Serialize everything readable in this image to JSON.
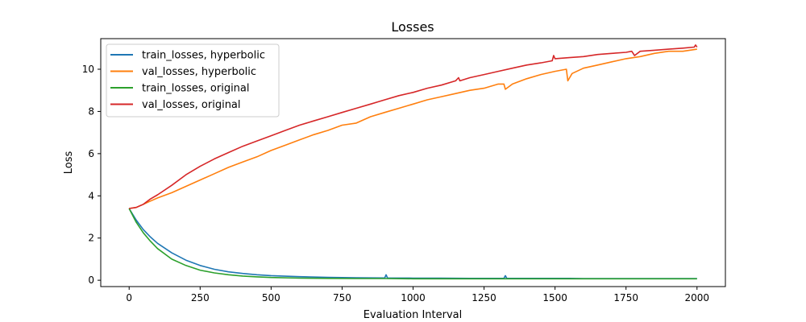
{
  "chart_data": {
    "type": "line",
    "title": "Losses",
    "xlabel": "Evaluation Interval",
    "ylabel": "Loss",
    "xlim": [
      -100,
      2100
    ],
    "ylim": [
      -0.3,
      11.45
    ],
    "xticks": [
      0,
      250,
      500,
      750,
      1000,
      1250,
      1500,
      1750,
      2000
    ],
    "yticks": [
      0,
      2,
      4,
      6,
      8,
      10
    ],
    "xtick_labels": [
      "0",
      "250",
      "500",
      "750",
      "1000",
      "1250",
      "1500",
      "1750",
      "2000"
    ],
    "ytick_labels": [
      "0",
      "2",
      "4",
      "6",
      "8",
      "10"
    ],
    "grid": false,
    "legend_position": "top-left",
    "series": [
      {
        "name": "train_losses, hyperbolic",
        "color": "#1f77b4",
        "x": [
          0,
          25,
          50,
          75,
          100,
          150,
          200,
          250,
          300,
          350,
          400,
          450,
          500,
          600,
          700,
          800,
          900,
          905,
          910,
          1000,
          1100,
          1200,
          1320,
          1325,
          1330,
          1400,
          1500,
          1550,
          1600,
          1700,
          1800,
          1900,
          1950,
          2000
        ],
        "y": [
          3.4,
          2.85,
          2.4,
          2.05,
          1.75,
          1.3,
          0.95,
          0.7,
          0.52,
          0.4,
          0.32,
          0.26,
          0.22,
          0.17,
          0.14,
          0.12,
          0.11,
          0.26,
          0.11,
          0.1,
          0.1,
          0.09,
          0.09,
          0.22,
          0.09,
          0.09,
          0.09,
          0.09,
          0.08,
          0.08,
          0.08,
          0.08,
          0.08,
          0.08
        ]
      },
      {
        "name": "val_losses, hyperbolic",
        "color": "#ff7f0e",
        "x": [
          0,
          25,
          50,
          75,
          100,
          150,
          200,
          250,
          300,
          350,
          400,
          450,
          500,
          550,
          600,
          650,
          700,
          750,
          800,
          850,
          900,
          950,
          1000,
          1050,
          1100,
          1150,
          1200,
          1250,
          1300,
          1320,
          1325,
          1350,
          1400,
          1450,
          1500,
          1540,
          1545,
          1560,
          1600,
          1650,
          1700,
          1750,
          1800,
          1850,
          1900,
          1950,
          2000
        ],
        "y": [
          3.4,
          3.45,
          3.6,
          3.75,
          3.9,
          4.15,
          4.45,
          4.75,
          5.05,
          5.35,
          5.6,
          5.85,
          6.15,
          6.4,
          6.65,
          6.9,
          7.1,
          7.35,
          7.45,
          7.75,
          7.95,
          8.15,
          8.35,
          8.55,
          8.7,
          8.85,
          9.0,
          9.1,
          9.3,
          9.3,
          9.05,
          9.3,
          9.55,
          9.75,
          9.9,
          10.0,
          9.45,
          9.8,
          10.05,
          10.2,
          10.35,
          10.5,
          10.6,
          10.75,
          10.85,
          10.85,
          10.95
        ]
      },
      {
        "name": "train_losses, original",
        "color": "#2ca02c",
        "x": [
          0,
          25,
          50,
          75,
          100,
          150,
          200,
          250,
          300,
          350,
          400,
          450,
          500,
          600,
          700,
          800,
          900,
          1000,
          1200,
          1400,
          1600,
          1800,
          2000
        ],
        "y": [
          3.4,
          2.75,
          2.25,
          1.85,
          1.5,
          1.0,
          0.7,
          0.48,
          0.35,
          0.26,
          0.2,
          0.16,
          0.13,
          0.1,
          0.09,
          0.08,
          0.08,
          0.07,
          0.07,
          0.07,
          0.07,
          0.07,
          0.07
        ]
      },
      {
        "name": "val_losses, original",
        "color": "#d62728",
        "x": [
          0,
          25,
          50,
          75,
          100,
          150,
          200,
          250,
          300,
          350,
          400,
          450,
          500,
          550,
          600,
          650,
          700,
          750,
          800,
          850,
          900,
          950,
          1000,
          1050,
          1100,
          1150,
          1160,
          1165,
          1200,
          1250,
          1300,
          1350,
          1400,
          1450,
          1490,
          1495,
          1500,
          1550,
          1600,
          1650,
          1700,
          1750,
          1770,
          1780,
          1800,
          1850,
          1900,
          1950,
          1990,
          1995,
          2000
        ],
        "y": [
          3.4,
          3.45,
          3.6,
          3.85,
          4.05,
          4.5,
          5.0,
          5.4,
          5.75,
          6.05,
          6.35,
          6.6,
          6.85,
          7.1,
          7.35,
          7.55,
          7.75,
          7.95,
          8.15,
          8.35,
          8.55,
          8.75,
          8.9,
          9.1,
          9.25,
          9.45,
          9.6,
          9.45,
          9.6,
          9.75,
          9.9,
          10.05,
          10.2,
          10.3,
          10.4,
          10.65,
          10.5,
          10.55,
          10.6,
          10.7,
          10.75,
          10.8,
          10.85,
          10.65,
          10.85,
          10.9,
          10.95,
          11.0,
          11.05,
          11.15,
          11.05
        ]
      }
    ]
  }
}
